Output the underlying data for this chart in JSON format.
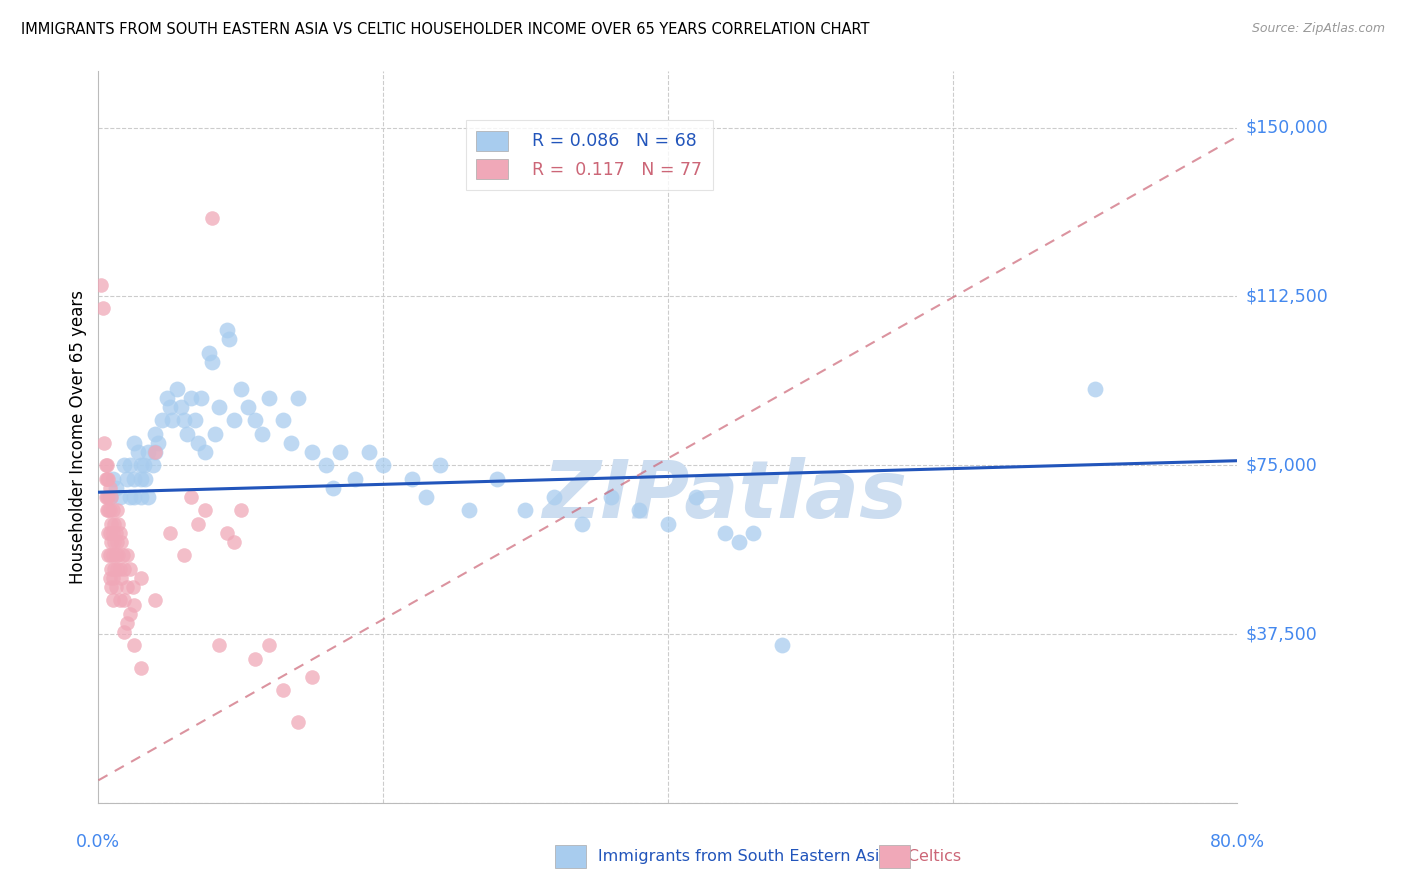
{
  "title": "IMMIGRANTS FROM SOUTH EASTERN ASIA VS CELTIC HOUSEHOLDER INCOME OVER 65 YEARS CORRELATION CHART",
  "source": "Source: ZipAtlas.com",
  "ylabel": "Householder Income Over 65 years",
  "xlim": [
    0.0,
    0.8
  ],
  "ylim": [
    0,
    162500
  ],
  "yticks": [
    0,
    37500,
    75000,
    112500,
    150000
  ],
  "ytick_labels": [
    "",
    "$37,500",
    "$75,000",
    "$112,500",
    "$150,000"
  ],
  "blue_color": "#a8ccee",
  "pink_color": "#f0a8b8",
  "blue_line_color": "#2255bb",
  "pink_line_color": "#cc6677",
  "axis_label_color": "#4488ee",
  "grid_color": "#cccccc",
  "watermark_text": "ZIPatlas",
  "watermark_color": "#ccddf0",
  "blue_scatter": [
    [
      0.008,
      68000
    ],
    [
      0.01,
      72000
    ],
    [
      0.012,
      70000
    ],
    [
      0.015,
      68000
    ],
    [
      0.018,
      75000
    ],
    [
      0.02,
      72000
    ],
    [
      0.022,
      68000
    ],
    [
      0.022,
      75000
    ],
    [
      0.025,
      80000
    ],
    [
      0.025,
      72000
    ],
    [
      0.025,
      68000
    ],
    [
      0.028,
      78000
    ],
    [
      0.03,
      75000
    ],
    [
      0.03,
      72000
    ],
    [
      0.03,
      68000
    ],
    [
      0.032,
      75000
    ],
    [
      0.033,
      72000
    ],
    [
      0.035,
      78000
    ],
    [
      0.035,
      68000
    ],
    [
      0.038,
      75000
    ],
    [
      0.04,
      82000
    ],
    [
      0.04,
      78000
    ],
    [
      0.042,
      80000
    ],
    [
      0.045,
      85000
    ],
    [
      0.048,
      90000
    ],
    [
      0.05,
      88000
    ],
    [
      0.052,
      85000
    ],
    [
      0.055,
      92000
    ],
    [
      0.058,
      88000
    ],
    [
      0.06,
      85000
    ],
    [
      0.062,
      82000
    ],
    [
      0.065,
      90000
    ],
    [
      0.068,
      85000
    ],
    [
      0.07,
      80000
    ],
    [
      0.072,
      90000
    ],
    [
      0.075,
      78000
    ],
    [
      0.078,
      100000
    ],
    [
      0.08,
      98000
    ],
    [
      0.082,
      82000
    ],
    [
      0.085,
      88000
    ],
    [
      0.09,
      105000
    ],
    [
      0.092,
      103000
    ],
    [
      0.095,
      85000
    ],
    [
      0.1,
      92000
    ],
    [
      0.105,
      88000
    ],
    [
      0.11,
      85000
    ],
    [
      0.115,
      82000
    ],
    [
      0.12,
      90000
    ],
    [
      0.13,
      85000
    ],
    [
      0.135,
      80000
    ],
    [
      0.14,
      90000
    ],
    [
      0.15,
      78000
    ],
    [
      0.16,
      75000
    ],
    [
      0.165,
      70000
    ],
    [
      0.17,
      78000
    ],
    [
      0.18,
      72000
    ],
    [
      0.19,
      78000
    ],
    [
      0.2,
      75000
    ],
    [
      0.22,
      72000
    ],
    [
      0.23,
      68000
    ],
    [
      0.24,
      75000
    ],
    [
      0.26,
      65000
    ],
    [
      0.28,
      72000
    ],
    [
      0.3,
      65000
    ],
    [
      0.32,
      68000
    ],
    [
      0.34,
      62000
    ],
    [
      0.36,
      68000
    ],
    [
      0.38,
      65000
    ],
    [
      0.4,
      62000
    ],
    [
      0.42,
      68000
    ],
    [
      0.44,
      60000
    ],
    [
      0.45,
      58000
    ],
    [
      0.46,
      60000
    ],
    [
      0.48,
      35000
    ],
    [
      0.7,
      92000
    ]
  ],
  "pink_scatter": [
    [
      0.002,
      115000
    ],
    [
      0.003,
      110000
    ],
    [
      0.004,
      80000
    ],
    [
      0.005,
      75000
    ],
    [
      0.005,
      72000
    ],
    [
      0.005,
      68000
    ],
    [
      0.006,
      75000
    ],
    [
      0.006,
      72000
    ],
    [
      0.006,
      68000
    ],
    [
      0.006,
      65000
    ],
    [
      0.007,
      72000
    ],
    [
      0.007,
      68000
    ],
    [
      0.007,
      65000
    ],
    [
      0.007,
      60000
    ],
    [
      0.007,
      55000
    ],
    [
      0.008,
      70000
    ],
    [
      0.008,
      65000
    ],
    [
      0.008,
      60000
    ],
    [
      0.008,
      55000
    ],
    [
      0.008,
      50000
    ],
    [
      0.009,
      68000
    ],
    [
      0.009,
      62000
    ],
    [
      0.009,
      58000
    ],
    [
      0.009,
      52000
    ],
    [
      0.009,
      48000
    ],
    [
      0.01,
      65000
    ],
    [
      0.01,
      60000
    ],
    [
      0.01,
      55000
    ],
    [
      0.01,
      50000
    ],
    [
      0.01,
      45000
    ],
    [
      0.011,
      62000
    ],
    [
      0.011,
      58000
    ],
    [
      0.011,
      52000
    ],
    [
      0.012,
      60000
    ],
    [
      0.012,
      55000
    ],
    [
      0.012,
      48000
    ],
    [
      0.013,
      65000
    ],
    [
      0.013,
      58000
    ],
    [
      0.013,
      52000
    ],
    [
      0.014,
      62000
    ],
    [
      0.014,
      55000
    ],
    [
      0.015,
      60000
    ],
    [
      0.015,
      52000
    ],
    [
      0.015,
      45000
    ],
    [
      0.016,
      58000
    ],
    [
      0.016,
      50000
    ],
    [
      0.017,
      55000
    ],
    [
      0.018,
      52000
    ],
    [
      0.018,
      45000
    ],
    [
      0.018,
      38000
    ],
    [
      0.02,
      55000
    ],
    [
      0.02,
      48000
    ],
    [
      0.02,
      40000
    ],
    [
      0.022,
      52000
    ],
    [
      0.022,
      42000
    ],
    [
      0.024,
      48000
    ],
    [
      0.025,
      44000
    ],
    [
      0.025,
      35000
    ],
    [
      0.03,
      50000
    ],
    [
      0.03,
      30000
    ],
    [
      0.04,
      78000
    ],
    [
      0.04,
      45000
    ],
    [
      0.05,
      60000
    ],
    [
      0.06,
      55000
    ],
    [
      0.065,
      68000
    ],
    [
      0.07,
      62000
    ],
    [
      0.075,
      65000
    ],
    [
      0.08,
      130000
    ],
    [
      0.085,
      35000
    ],
    [
      0.09,
      60000
    ],
    [
      0.095,
      58000
    ],
    [
      0.1,
      65000
    ],
    [
      0.11,
      32000
    ],
    [
      0.12,
      35000
    ],
    [
      0.13,
      25000
    ],
    [
      0.14,
      18000
    ],
    [
      0.15,
      28000
    ]
  ],
  "blue_trendline": [
    [
      0.0,
      69000
    ],
    [
      0.8,
      76000
    ]
  ],
  "pink_trendline": [
    [
      0.0,
      5000
    ],
    [
      0.8,
      148000
    ]
  ]
}
